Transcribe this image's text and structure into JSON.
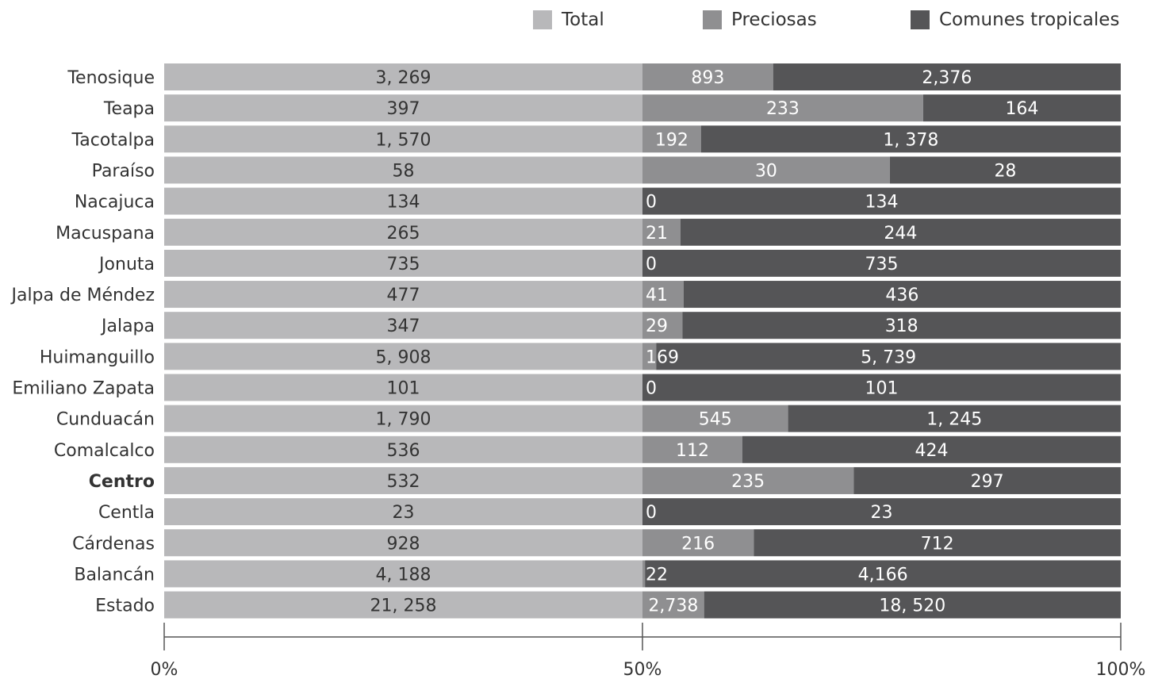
{
  "legend": [
    {
      "label": "Total",
      "color": "#b8b8ba"
    },
    {
      "label": "Preciosas",
      "color": "#8f8f91"
    },
    {
      "label": "Comunes tropicales",
      "color": "#555557"
    }
  ],
  "chart_data": {
    "type": "bar",
    "orientation": "horizontal",
    "stacked": "percent",
    "categories": [
      "Tenosique",
      "Teapa",
      "Tacotalpa",
      "Paraíso",
      "Nacajuca",
      "Macuspana",
      "Jonuta",
      "Jalpa de Méndez",
      "Jalapa",
      "Huimanguillo",
      "Emiliano Zapata",
      "Cunduacán",
      "Comalcalco",
      "Centro",
      "Centla",
      "Cárdenas",
      "Balancán",
      "Estado"
    ],
    "highlighted_category": "Centro",
    "series": [
      {
        "name": "Total",
        "values": [
          3269,
          397,
          1570,
          58,
          134,
          265,
          735,
          477,
          347,
          5908,
          101,
          1790,
          536,
          532,
          23,
          928,
          4188,
          21258
        ],
        "labels": [
          "3, 269",
          "397",
          "1, 570",
          "58",
          "134",
          "265",
          "735",
          "477",
          "347",
          "5, 908",
          "101",
          "1, 790",
          "536",
          "532",
          "23",
          "928",
          "4, 188",
          "21, 258"
        ]
      },
      {
        "name": "Preciosas",
        "values": [
          893,
          233,
          192,
          30,
          0,
          21,
          0,
          41,
          29,
          169,
          0,
          545,
          112,
          235,
          0,
          216,
          22,
          2738
        ],
        "labels": [
          "893",
          "233",
          "192",
          "30",
          "0",
          "21",
          "0",
          "41",
          "29",
          "169",
          "0",
          "545",
          "112",
          "235",
          "0",
          "216",
          "22",
          "2,738"
        ]
      },
      {
        "name": "Comunes tropicales",
        "values": [
          2376,
          164,
          1378,
          28,
          134,
          244,
          735,
          436,
          318,
          5739,
          101,
          1245,
          424,
          297,
          23,
          712,
          4166,
          18520
        ],
        "labels": [
          "2,376",
          "164",
          "1, 378",
          "28",
          "134",
          "244",
          "735",
          "436",
          "318",
          "5, 739",
          "101",
          "1, 245",
          "424",
          "297",
          "23",
          "712",
          "4,166",
          "18, 520"
        ]
      }
    ],
    "x_ticks": [
      "0%",
      "50%",
      "100%"
    ],
    "xlim": [
      0,
      100
    ],
    "legend_position": "top-right",
    "grid": false
  }
}
